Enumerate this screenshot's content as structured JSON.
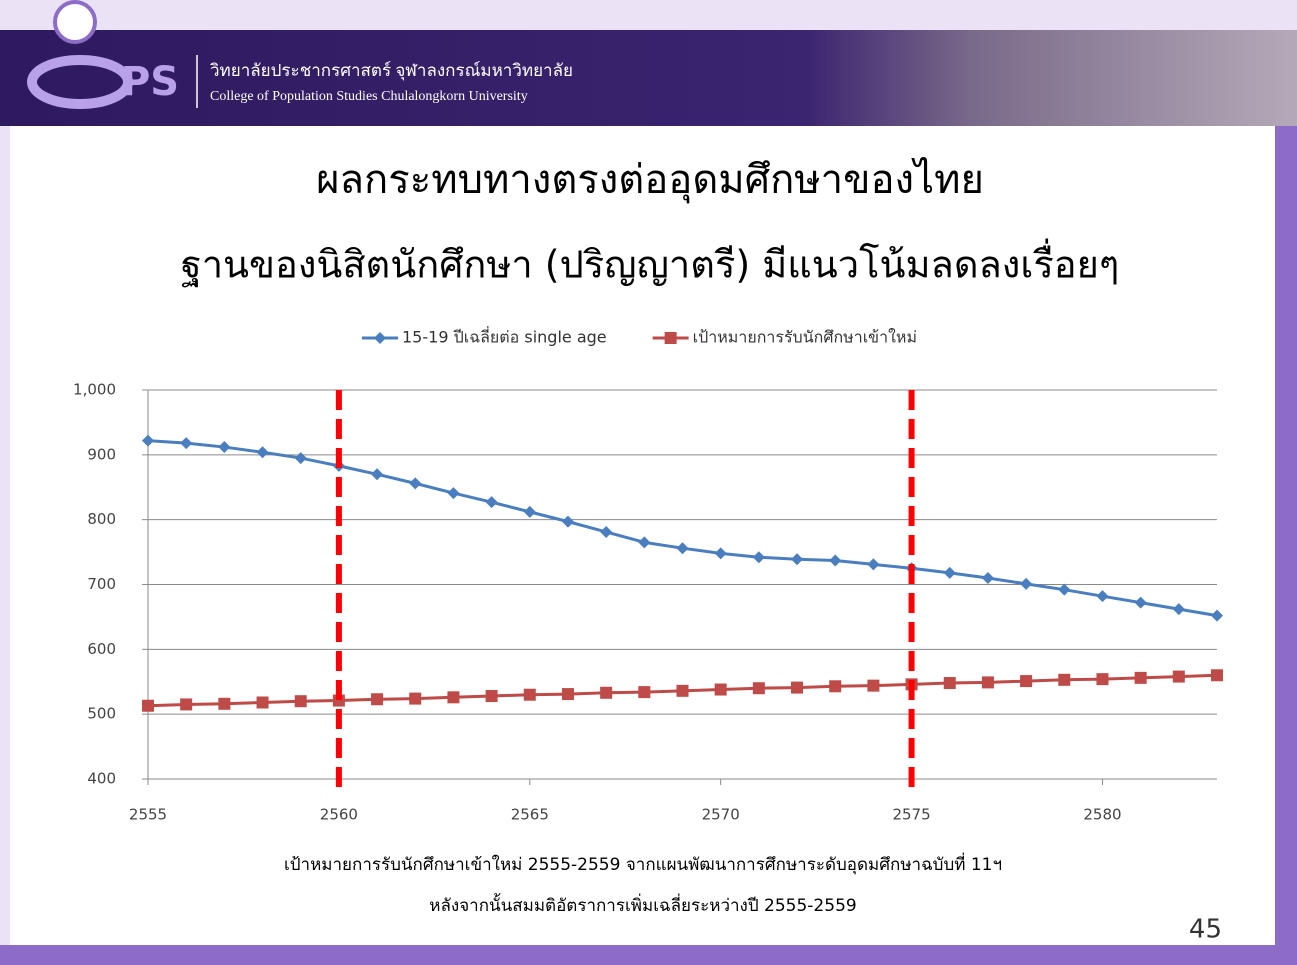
{
  "header": {
    "logo": "PS",
    "thai_name": "วิทยาลัยประชากรศาสตร์ จุฬาลงกรณ์มหาวิทยาลัย",
    "english_name": "College of Population Studies  Chulalongkorn University"
  },
  "title": "ผลกระทบทางตรงต่ออุดมศึกษาของไทย",
  "subtitle": "ฐานของนิสิตนักศึกษา (ปริญญาตรี) มีแนวโน้มลดลงเรื่อยๆ",
  "chart_data": {
    "type": "line",
    "x": [
      2555,
      2556,
      2557,
      2558,
      2559,
      2560,
      2561,
      2562,
      2563,
      2564,
      2565,
      2566,
      2567,
      2568,
      2569,
      2570,
      2571,
      2572,
      2573,
      2574,
      2575,
      2576,
      2577,
      2578,
      2579,
      2580,
      2581,
      2582,
      2583
    ],
    "series": [
      {
        "name": "15-19 ปีเฉลี่ยต่อ single age",
        "color": "#4a7ebf",
        "marker": "diamond",
        "values": [
          922,
          918,
          912,
          904,
          895,
          883,
          870,
          856,
          841,
          827,
          812,
          797,
          781,
          765,
          756,
          748,
          742,
          739,
          737,
          731,
          725,
          718,
          710,
          701,
          692,
          682,
          672,
          662,
          652
        ]
      },
      {
        "name": "เป้าหมายการรับนักศึกษาเข้าใหม่",
        "color": "#be4b48",
        "marker": "square",
        "values": [
          513,
          515,
          516,
          518,
          520,
          521,
          523,
          524,
          526,
          528,
          530,
          531,
          533,
          534,
          536,
          538,
          540,
          541,
          543,
          544,
          546,
          548,
          549,
          551,
          553,
          554,
          556,
          558,
          560
        ]
      }
    ],
    "xlim": [
      2555,
      2583
    ],
    "xticks": [
      2555,
      2560,
      2565,
      2570,
      2575,
      2580
    ],
    "ylim": [
      400,
      1000
    ],
    "yticks": [
      400,
      500,
      600,
      700,
      800,
      900,
      {
        "value": 1000,
        "label": "1,000"
      }
    ],
    "grid": true,
    "legend": "top",
    "vlines": {
      "values": [
        2560,
        2575
      ],
      "color": "#ff0000"
    }
  },
  "notes": [
    "เป้าหมายการรับนักศึกษาเข้าใหม่ 2555-2559 จากแผนพัฒนาการศึกษาระดับอุดมศึกษาฉบับที่ 11ฯ",
    "หลังจากนั้นสมมติอัตราการเพิ่มเฉลี่ยระหว่างปี 2555-2559"
  ],
  "page_number": "45"
}
